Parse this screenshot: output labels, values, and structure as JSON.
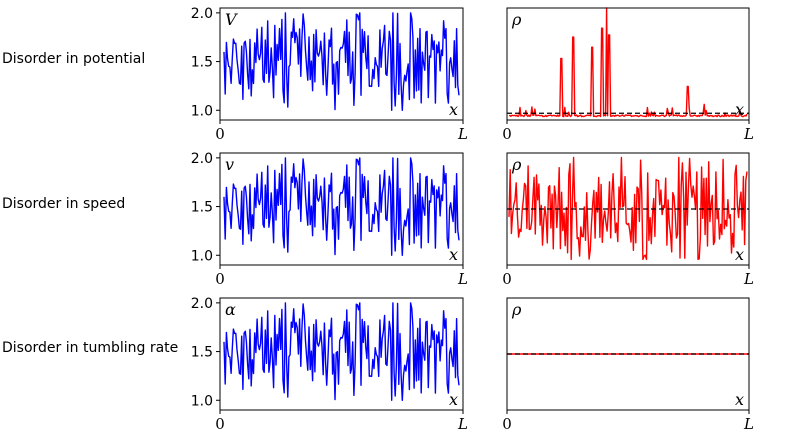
{
  "row_labels": [
    "Disorder in potential",
    "Disorder in speed",
    "Disorder in tumbling rate"
  ],
  "chart_data": [
    {
      "type": "line",
      "panel": "potential-profile",
      "symbol": "V",
      "xlabel": "x",
      "xtick_labels": [
        "0",
        "L"
      ],
      "ytick_values": [
        1.0,
        1.5,
        2.0
      ],
      "ytick_labels": [
        "1.0",
        "1.5",
        "2.0"
      ],
      "ylim": [
        0.9,
        2.05
      ],
      "color": "#0000ff",
      "n_points": 200
    },
    {
      "type": "line",
      "panel": "density-potential",
      "symbol": "ρ",
      "xlabel": "x",
      "xtick_labels": [
        "0",
        "L"
      ],
      "color": "#ff0000",
      "reference_line": "dashed",
      "reference_color": "#000000",
      "reference_value": 0.06,
      "ylim": [
        0,
        1
      ],
      "peaks": [
        [
          0.22,
          0.55
        ],
        [
          0.27,
          0.74
        ],
        [
          0.35,
          0.65
        ],
        [
          0.39,
          0.82
        ],
        [
          0.41,
          1.0
        ],
        [
          0.42,
          0.76
        ],
        [
          0.75,
          0.3
        ],
        [
          0.82,
          0.14
        ]
      ]
    },
    {
      "type": "line",
      "panel": "speed-profile",
      "symbol": "v",
      "xlabel": "x",
      "xtick_labels": [
        "0",
        "L"
      ],
      "ytick_values": [
        1.0,
        1.5,
        2.0
      ],
      "ytick_labels": [
        "1.0",
        "1.5",
        "2.0"
      ],
      "ylim": [
        0.9,
        2.05
      ],
      "color": "#0000ff",
      "n_points": 200
    },
    {
      "type": "line",
      "panel": "density-speed",
      "symbol": "ρ",
      "xlabel": "x",
      "xtick_labels": [
        "0",
        "L"
      ],
      "color": "#ff0000",
      "reference_line": "dashed",
      "reference_color": "#000000",
      "reference_value": 0.5,
      "ylim": [
        0,
        1
      ]
    },
    {
      "type": "line",
      "panel": "tumbling-rate-profile",
      "symbol": "α",
      "xlabel": "x",
      "xtick_labels": [
        "0",
        "L"
      ],
      "ytick_values": [
        1.0,
        1.5,
        2.0
      ],
      "ytick_labels": [
        "1.0",
        "1.5",
        "2.0"
      ],
      "ylim": [
        0.9,
        2.05
      ],
      "color": "#0000ff",
      "n_points": 200
    },
    {
      "type": "line",
      "panel": "density-tumbling-rate",
      "symbol": "ρ",
      "xlabel": "x",
      "xtick_labels": [
        "0",
        "L"
      ],
      "color": "#ff0000",
      "reference_line": "dashed",
      "reference_color": "#000000",
      "reference_value": 0.5,
      "ylim": [
        0,
        1
      ]
    }
  ]
}
